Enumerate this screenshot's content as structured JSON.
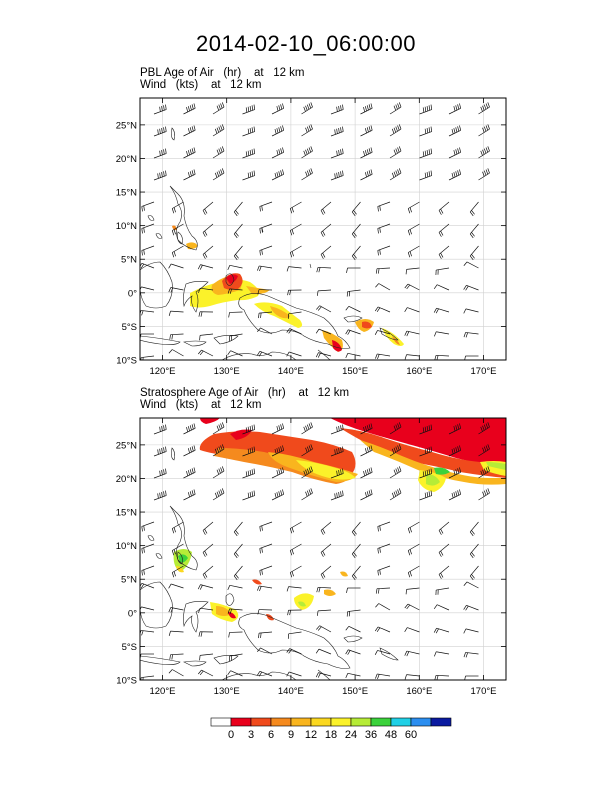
{
  "title": "2014-02-10_06:00:00",
  "panels": [
    {
      "line1": [
        "PBL Age of Air",
        "(hr)",
        "at",
        "12 km"
      ],
      "line2": [
        "Wind",
        "(kts)",
        "at",
        "12 km"
      ]
    },
    {
      "line1": [
        "Stratosphere Age of Air",
        "(hr)",
        "at",
        "12 km"
      ],
      "line2": [
        "Wind",
        "(kts)",
        "at",
        "12 km"
      ]
    }
  ],
  "axes": {
    "lon_labels": [
      "120°E",
      "130°E",
      "140°E",
      "150°E",
      "160°E",
      "170°E"
    ],
    "lon_values": [
      120,
      130,
      140,
      150,
      160,
      170
    ],
    "lat_labels": [
      "25°N",
      "20°N",
      "15°N",
      "10°N",
      "5°N",
      "0°",
      "5°S",
      "10°S"
    ],
    "lat_values": [
      25,
      20,
      15,
      10,
      5,
      0,
      -5,
      -10
    ],
    "lon_range": [
      116.5,
      173.5
    ],
    "lat_range": [
      -10,
      29
    ]
  },
  "colorbar": {
    "labels": [
      "0",
      "3",
      "6",
      "9",
      "12",
      "18",
      "24",
      "36",
      "48",
      "60"
    ],
    "colors": [
      "#ffffff",
      "#e8001c",
      "#f04a1c",
      "#f58a1e",
      "#f9b51e",
      "#fbd820",
      "#fbf22a",
      "#b6ec37",
      "#3bd23b",
      "#20d0e6",
      "#2b8ef0",
      "#0a1aa0"
    ]
  },
  "map_colors": {
    "red": "#e8001c",
    "orange_red": "#f04a1c",
    "orange": "#f58a1e",
    "amber": "#f9b51e",
    "gold": "#fbd820",
    "yellow": "#fbf22a",
    "lime": "#b6ec37",
    "green": "#3bd23b"
  }
}
